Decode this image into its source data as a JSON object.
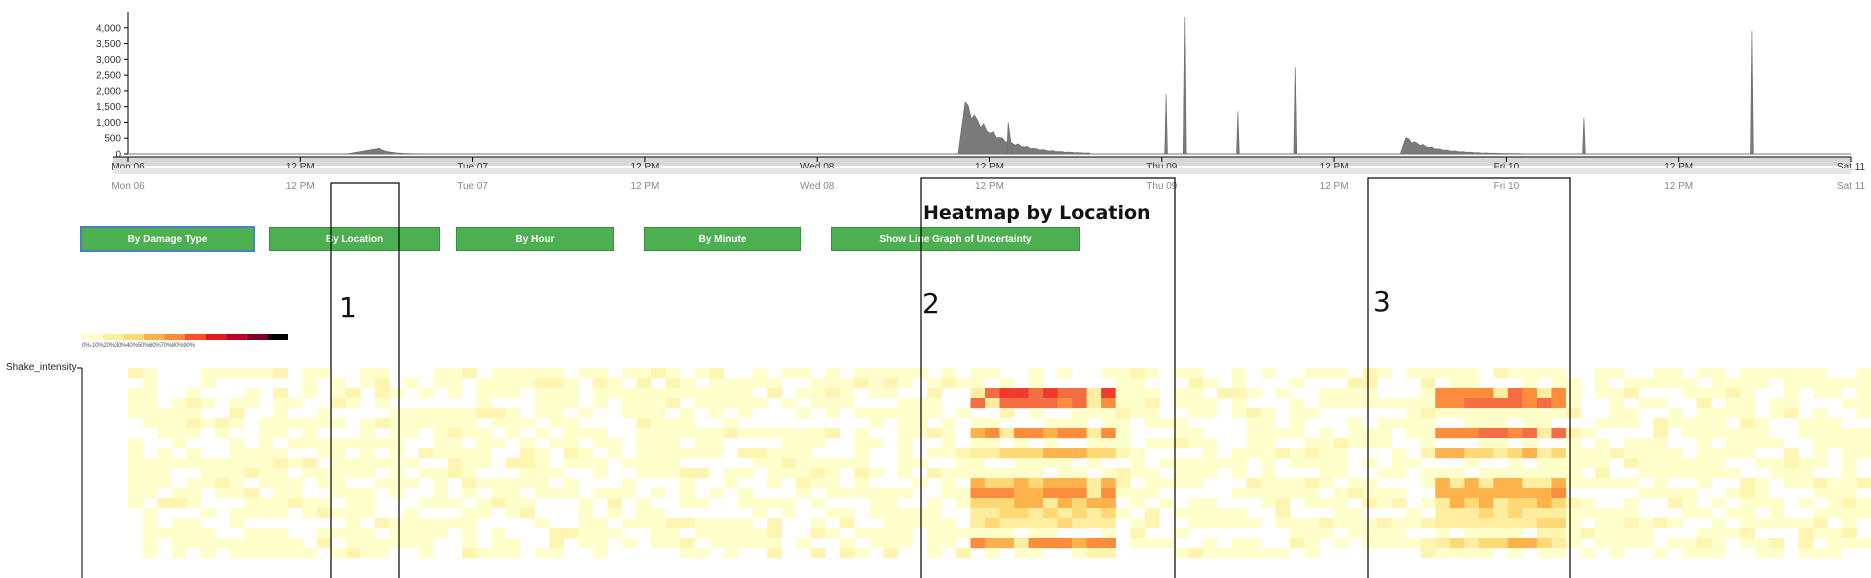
{
  "chart_data": {
    "type": "heatmap",
    "title": "Heatmap by Location",
    "ylabel": "Shake_intensity",
    "top_area_chart": {
      "type": "area",
      "yticks": [
        "0",
        "500",
        "1,000",
        "1,500",
        "2,000",
        "2,500",
        "3,000",
        "3,500",
        "4,000"
      ],
      "ylim": [
        0,
        4500
      ],
      "xlim_hours": [
        0,
        120
      ],
      "x_ticks": [
        {
          "label": "Mon 06",
          "hour": 0
        },
        {
          "label": "12 PM",
          "hour": 12
        },
        {
          "label": "Tue 07",
          "hour": 24
        },
        {
          "label": "12 PM",
          "hour": 36
        },
        {
          "label": "Wed 08",
          "hour": 48
        },
        {
          "label": "12 PM",
          "hour": 60
        },
        {
          "label": "Thu 09",
          "hour": 72
        },
        {
          "label": "12 PM",
          "hour": 84
        },
        {
          "label": "Fri 10",
          "hour": 96
        },
        {
          "label": "12 PM",
          "hour": 108
        },
        {
          "label": "Sat 11",
          "hour": 120
        }
      ],
      "bursts": [
        {
          "start": 15.2,
          "peak": 17.5,
          "end": 20.5,
          "value": 180
        },
        {
          "start": 57.8,
          "peak": 58.3,
          "end": 67,
          "value": 1650
        },
        {
          "start": 61.2,
          "peak": 61.3,
          "end": 61.6,
          "value": 1000
        },
        {
          "start": 72.2,
          "peak": 72.3,
          "end": 72.4,
          "value": 1900
        },
        {
          "start": 73.5,
          "peak": 73.6,
          "end": 73.7,
          "value": 4350
        },
        {
          "start": 77.2,
          "peak": 77.3,
          "end": 77.4,
          "value": 1350
        },
        {
          "start": 81.2,
          "peak": 81.3,
          "end": 81.4,
          "value": 2750
        },
        {
          "start": 88.6,
          "peak": 89.0,
          "end": 97,
          "value": 520
        },
        {
          "start": 101.3,
          "peak": 101.4,
          "end": 101.5,
          "value": 1150
        },
        {
          "start": 113.0,
          "peak": 113.1,
          "end": 113.2,
          "value": 3900
        }
      ]
    },
    "brush_ticks": [
      "Mon 06",
      "12 PM",
      "Tue 07",
      "12 PM",
      "Wed 08",
      "12 PM",
      "Thu 09",
      "12 PM",
      "Fri 10",
      "12 PM",
      "Sat 11"
    ],
    "legend_labels": "0%-10%20%30%40%50%60%70%80%90%",
    "legend_colors": [
      "#ffffcc",
      "#ffeda0",
      "#fed976",
      "#feb24c",
      "#fd8d3c",
      "#fc4e2a",
      "#e31a1c",
      "#bd0026",
      "#800026",
      "#000000"
    ],
    "heatmap": {
      "rows": 19,
      "cols": 120,
      "xlim_hours": [
        0,
        120
      ],
      "row_bands": {
        "b1": [
          0,
          6
        ],
        "b2": [
          58,
          68
        ],
        "b3": [
          90,
          99
        ]
      }
    },
    "annotations": [
      {
        "label": "1",
        "from_hour": 15,
        "to_hour": 19
      },
      {
        "label": "2",
        "from_hour": 57,
        "to_hour": 74
      },
      {
        "label": "3",
        "from_hour": 86,
        "to_hour": 99.5
      }
    ]
  },
  "buttons": [
    {
      "label": "By Damage Type",
      "active": true
    },
    {
      "label": "By Location",
      "active": false
    },
    {
      "label": "By Hour",
      "active": false
    },
    {
      "label": "By Minute",
      "active": false
    },
    {
      "label": "Show Line Graph of Uncertainty",
      "active": false
    }
  ]
}
